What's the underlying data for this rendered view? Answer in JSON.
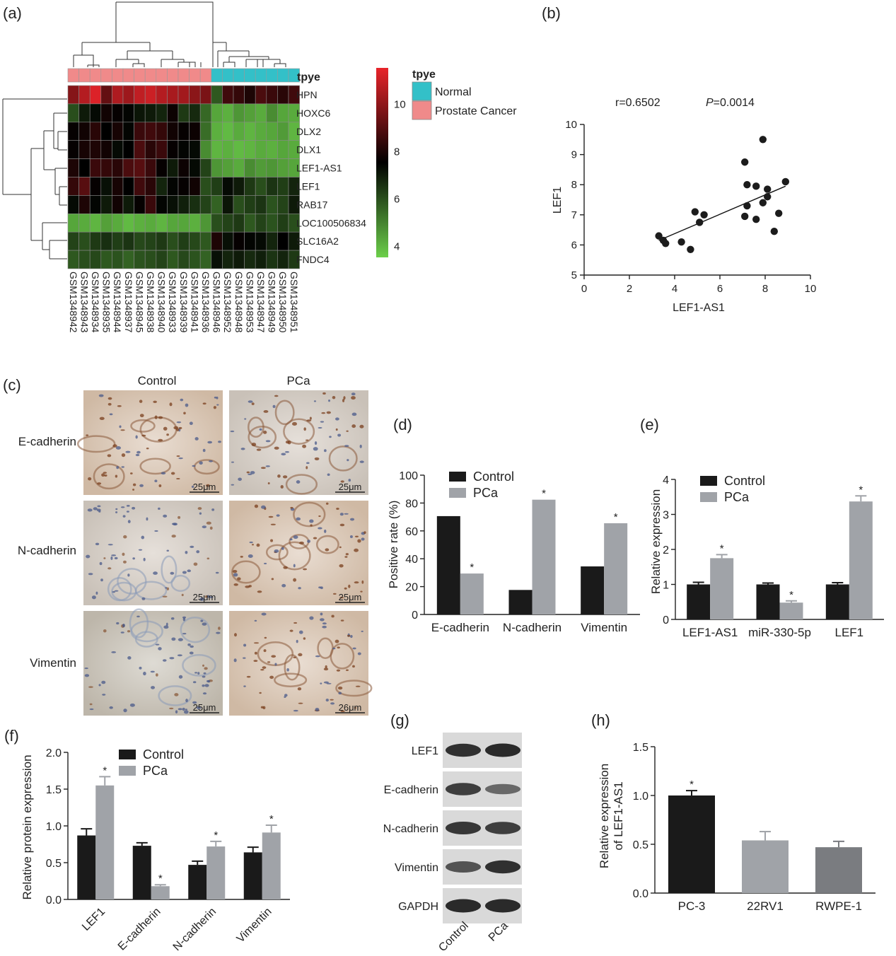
{
  "figure": {
    "panel_labels": [
      "(a)",
      "(b)",
      "(c)",
      "(d)",
      "(e)",
      "(f)",
      "(g)",
      "(h)"
    ]
  },
  "colors": {
    "dark_bar": "#1a1a1a",
    "light_bar": "#a0a3a8",
    "mid_bar": "#7a7c80",
    "normal": "#33c0c8",
    "cancer": "#f08a8a",
    "heat_high": "#e8242a",
    "heat_mid": "#000000",
    "heat_low": "#6ccf4a"
  },
  "chart_data": [
    {
      "panel": "(a)",
      "type": "heatmap",
      "annotation_title": "tpye",
      "legend": [
        "Normal",
        "Prostate Cancer"
      ],
      "color_scale_ticks": [
        10,
        8,
        6,
        4
      ],
      "color_range": [
        3.5,
        11.5
      ],
      "rows": [
        "HPN",
        "HOXC6",
        "DLX2",
        "DLX1",
        "LEF1-AS1",
        "LEF1",
        "RAB17",
        "LOC100506834",
        "SLC16A2",
        "FNDC4"
      ],
      "columns": [
        "GSM1348942",
        "GSM1348943",
        "GSM1348934",
        "GSM1348935",
        "GSM1348944",
        "GSM1348937",
        "GSM1348945",
        "GSM1348938",
        "GSM1348940",
        "GSM1348933",
        "GSM1348939",
        "GSM1348941",
        "GSM1348936",
        "GSM1348946",
        "GSM1348952",
        "GSM1348948",
        "GSM1348953",
        "GSM1348947",
        "GSM1348949",
        "GSM1348950",
        "GSM1348951"
      ],
      "column_groups": [
        "Prostate Cancer",
        "Prostate Cancer",
        "Prostate Cancer",
        "Prostate Cancer",
        "Prostate Cancer",
        "Prostate Cancer",
        "Prostate Cancer",
        "Prostate Cancer",
        "Prostate Cancer",
        "Prostate Cancer",
        "Prostate Cancer",
        "Prostate Cancer",
        "Prostate Cancer",
        "Normal",
        "Normal",
        "Normal",
        "Normal",
        "Normal",
        "Normal",
        "Normal",
        "Normal"
      ],
      "values": [
        [
          9.8,
          10.6,
          11.3,
          9.2,
          10.5,
          10.2,
          10.8,
          11.0,
          10.6,
          10.4,
          10.3,
          9.9,
          9.6,
          5.8,
          8.6,
          8.4,
          8.0,
          8.8,
          8.5,
          8.2,
          8.6
        ],
        [
          6.0,
          7.0,
          7.3,
          7.8,
          7.6,
          7.4,
          7.1,
          7.0,
          6.8,
          7.7,
          6.4,
          6.7,
          5.5,
          4.3,
          4.1,
          4.6,
          4.4,
          4.2,
          4.8,
          4.3,
          4.2
        ],
        [
          7.6,
          7.8,
          8.2,
          7.5,
          7.9,
          7.4,
          8.5,
          8.6,
          8.4,
          7.8,
          7.6,
          7.7,
          5.4,
          4.1,
          3.9,
          4.2,
          4.0,
          4.2,
          4.3,
          4.5,
          4.0
        ],
        [
          7.6,
          7.9,
          8.0,
          7.8,
          7.3,
          7.5,
          8.8,
          8.2,
          8.5,
          7.6,
          7.4,
          7.3,
          4.8,
          4.0,
          4.1,
          3.9,
          4.0,
          4.2,
          4.1,
          4.3,
          4.2
        ],
        [
          8.0,
          7.5,
          8.5,
          8.4,
          8.2,
          8.8,
          9.0,
          8.5,
          7.6,
          7.0,
          7.7,
          7.3,
          6.2,
          4.6,
          4.4,
          4.2,
          4.8,
          4.5,
          4.6,
          4.4,
          4.3
        ],
        [
          8.4,
          9.0,
          7.6,
          7.2,
          7.9,
          7.5,
          8.6,
          8.2,
          6.8,
          7.4,
          7.6,
          7.8,
          6.0,
          6.3,
          7.3,
          7.0,
          6.4,
          6.0,
          6.5,
          6.3,
          6.8
        ],
        [
          7.3,
          8.0,
          7.4,
          7.0,
          7.8,
          7.0,
          7.6,
          8.5,
          7.4,
          7.2,
          6.9,
          6.6,
          6.2,
          5.6,
          7.1,
          6.0,
          6.3,
          6.5,
          5.9,
          6.2,
          7.0
        ],
        [
          4.3,
          4.2,
          4.0,
          4.4,
          4.2,
          3.9,
          4.1,
          4.2,
          4.0,
          4.3,
          4.3,
          4.1,
          4.6,
          6.0,
          6.2,
          6.4,
          5.8,
          6.2,
          5.9,
          6.3,
          6.0
        ],
        [
          6.2,
          6.0,
          6.4,
          6.6,
          6.3,
          6.5,
          6.1,
          6.2,
          6.4,
          6.0,
          6.3,
          6.1,
          5.8,
          8.0,
          7.2,
          7.6,
          7.4,
          7.3,
          6.8,
          7.5,
          7.0
        ],
        [
          5.8,
          6.0,
          6.1,
          5.8,
          5.9,
          5.6,
          5.9,
          6.0,
          6.2,
          5.8,
          6.1,
          5.9,
          5.6,
          7.2,
          6.8,
          7.0,
          6.7,
          6.9,
          6.5,
          6.8,
          6.4
        ]
      ]
    },
    {
      "panel": "(b)",
      "type": "scatter",
      "annotation_r": "r=0.6502",
      "annotation_p_label": "P",
      "annotation_p_value": "=0.0014",
      "xlabel": "LEF1-AS1",
      "ylabel": "LEF1",
      "xlim": [
        0,
        10
      ],
      "ylim": [
        5,
        10
      ],
      "xticks": [
        "0",
        "2",
        "4",
        "6",
        "8",
        "10"
      ],
      "yticks": [
        "5",
        "6",
        "7",
        "8",
        "9",
        "10"
      ],
      "points": [
        [
          3.3,
          6.3
        ],
        [
          3.5,
          6.15
        ],
        [
          3.6,
          6.05
        ],
        [
          4.3,
          6.1
        ],
        [
          4.7,
          5.85
        ],
        [
          4.9,
          7.1
        ],
        [
          5.1,
          6.75
        ],
        [
          5.3,
          7.0
        ],
        [
          7.1,
          8.75
        ],
        [
          7.2,
          8.0
        ],
        [
          7.2,
          7.3
        ],
        [
          7.1,
          6.95
        ],
        [
          7.6,
          7.95
        ],
        [
          7.6,
          6.85
        ],
        [
          7.9,
          9.5
        ],
        [
          7.9,
          7.4
        ],
        [
          8.1,
          7.85
        ],
        [
          8.1,
          7.6
        ],
        [
          8.4,
          6.45
        ],
        [
          8.6,
          7.05
        ],
        [
          8.9,
          8.1
        ]
      ],
      "fit_line": [
        [
          3.3,
          6.15
        ],
        [
          8.9,
          7.95
        ]
      ]
    },
    {
      "panel": "(d)",
      "type": "bar",
      "categories": [
        "E-cadherin",
        "N-cadherin",
        "Vimentin"
      ],
      "ylabel": "Positive rate (%)",
      "ylim": [
        0,
        100
      ],
      "yticks": [
        "0",
        "20",
        "40",
        "60",
        "80",
        "100"
      ],
      "series": [
        {
          "name": "Control",
          "values": [
            70.6,
            17.6,
            34.5
          ],
          "sig": [
            "",
            "",
            ""
          ]
        },
        {
          "name": "PCa",
          "values": [
            29.4,
            82.4,
            65.5
          ],
          "sig": [
            "*",
            "*",
            "*"
          ]
        }
      ]
    },
    {
      "panel": "(e)",
      "type": "bar",
      "categories": [
        "LEF1-AS1",
        "miR-330-5p",
        "LEF1"
      ],
      "ylabel": "Relative expression",
      "ylim": [
        0,
        4
      ],
      "yticks": [
        "0",
        "1",
        "2",
        "3",
        "4"
      ],
      "series": [
        {
          "name": "Control",
          "values": [
            1.0,
            1.0,
            1.0
          ],
          "errors": [
            0.06,
            0.04,
            0.05
          ],
          "sig": [
            "",
            "",
            ""
          ]
        },
        {
          "name": "PCa",
          "values": [
            1.75,
            0.48,
            3.37
          ],
          "errors": [
            0.1,
            0.05,
            0.16
          ],
          "sig": [
            "*",
            "*",
            "*"
          ]
        }
      ]
    },
    {
      "panel": "(f)",
      "type": "bar",
      "categories": [
        "LEF1",
        "E-cadherin",
        "N-cadherin",
        "Vimentin"
      ],
      "ylabel": "Relative protein expression",
      "ylim": [
        0,
        2.0
      ],
      "yticks": [
        "0.0",
        "0.5",
        "1.0",
        "1.5",
        "2.0"
      ],
      "series": [
        {
          "name": "Control",
          "values": [
            0.87,
            0.73,
            0.47,
            0.64
          ],
          "errors": [
            0.09,
            0.04,
            0.05,
            0.07
          ],
          "sig": [
            "",
            "",
            "",
            ""
          ]
        },
        {
          "name": "PCa",
          "values": [
            1.55,
            0.18,
            0.72,
            0.91
          ],
          "errors": [
            0.12,
            0.02,
            0.07,
            0.1
          ],
          "sig": [
            "*",
            "*",
            "*",
            "*"
          ]
        }
      ]
    },
    {
      "panel": "(h)",
      "type": "bar",
      "categories": [
        "PC-3",
        "22RV1",
        "RWPE-1"
      ],
      "ylabel_line1": "Relative expression",
      "ylabel_line2": "of LEF1-AS1",
      "ylim": [
        0,
        1.5
      ],
      "yticks": [
        "0.0",
        "0.5",
        "1.0",
        "1.5"
      ],
      "values": [
        1.0,
        0.54,
        0.47
      ],
      "errors": [
        0.05,
        0.09,
        0.06
      ],
      "sig": [
        "*",
        "",
        ""
      ],
      "bar_colors": [
        "#1a1a1a",
        "#a0a3a8",
        "#7a7c80"
      ]
    }
  ],
  "ihc": {
    "columns": [
      "Control",
      "PCa"
    ],
    "rows": [
      "E-cadherin",
      "N-cadherin",
      "Vimentin"
    ],
    "scale_labels": [
      "25μm",
      "25μm",
      "25μm",
      "25μm",
      "25μm",
      "26μm"
    ]
  },
  "western": {
    "bands": [
      "LEF1",
      "E-cadherin",
      "N-cadherin",
      "Vimentin",
      "GAPDH"
    ],
    "lanes": [
      "Control",
      "PCa"
    ],
    "band_intensity": [
      [
        0.85,
        0.9
      ],
      [
        0.75,
        0.45
      ],
      [
        0.8,
        0.75
      ],
      [
        0.6,
        0.85
      ],
      [
        0.9,
        0.9
      ]
    ]
  }
}
